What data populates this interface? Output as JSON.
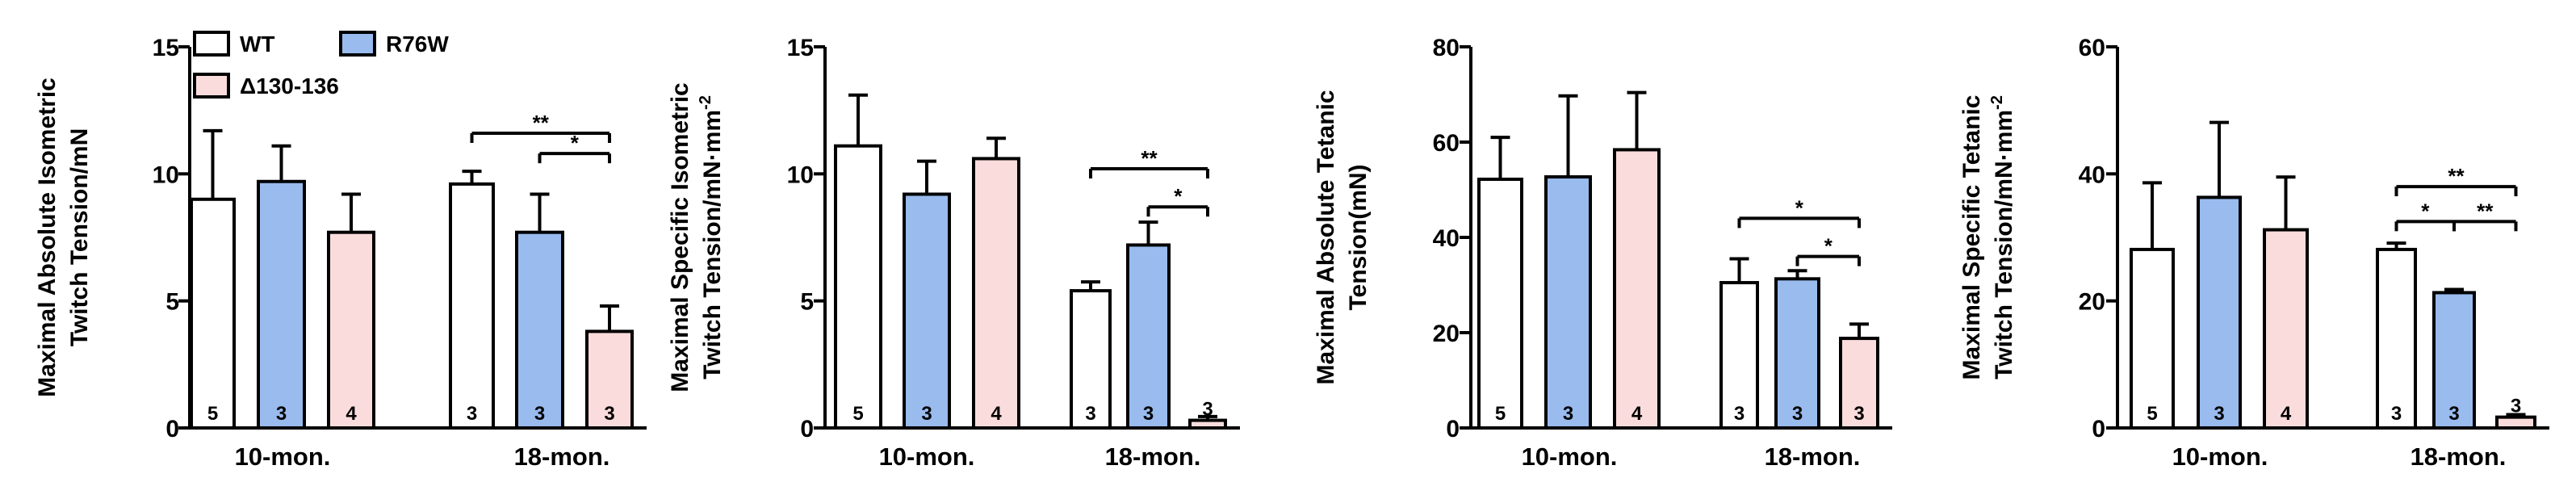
{
  "chart_data": [
    {
      "type": "bar",
      "ylabel": [
        "Maximal Absolute Isometric",
        "Twitch Tension/mN"
      ],
      "ylim": [
        0,
        15
      ],
      "yticks": [
        0,
        5,
        10,
        15
      ],
      "categories": [
        "10-mon.",
        "18-mon."
      ],
      "series": [
        {
          "name": "WT",
          "color": "#ffffff",
          "values": [
            9.0,
            9.6
          ],
          "errors": [
            2.7,
            0.5
          ],
          "n": [
            "5",
            "3"
          ]
        },
        {
          "name": "R76W",
          "color": "#99bbee",
          "values": [
            9.7,
            7.7
          ],
          "errors": [
            1.4,
            1.5
          ],
          "n": [
            "3",
            "3"
          ]
        },
        {
          "name": "Δ130-136",
          "color": "#fbdcdc",
          "values": [
            7.7,
            3.8
          ],
          "errors": [
            1.5,
            1.0
          ],
          "n": [
            "4",
            "3"
          ]
        }
      ],
      "significance": [
        {
          "from": 1,
          "to": 2,
          "y": 10.8,
          "label": "*"
        },
        {
          "from": 0,
          "to": 2,
          "y": 11.6,
          "label": "**"
        }
      ],
      "grid": false
    },
    {
      "type": "bar",
      "ylabel": [
        "Maximal Specific Isometric",
        "Twitch Tension/mN·mm",
        "-2"
      ],
      "ylim": [
        0,
        15
      ],
      "yticks": [
        0,
        5,
        10,
        15
      ],
      "categories": [
        "10-mon.",
        "18-mon."
      ],
      "series": [
        {
          "name": "WT",
          "color": "#ffffff",
          "values": [
            11.1,
            5.4
          ],
          "errors": [
            2.0,
            0.35
          ],
          "n": [
            "5",
            "3"
          ]
        },
        {
          "name": "R76W",
          "color": "#99bbee",
          "values": [
            9.2,
            7.2
          ],
          "errors": [
            1.3,
            0.9
          ],
          "n": [
            "3",
            "3"
          ]
        },
        {
          "name": "Δ130-136",
          "color": "#fbdcdc",
          "values": [
            10.6,
            0.3
          ],
          "errors": [
            0.8,
            0.15
          ],
          "n": [
            "4",
            "3"
          ]
        }
      ],
      "significance": [
        {
          "from": 1,
          "to": 2,
          "y": 8.7,
          "label": "*"
        },
        {
          "from": 0,
          "to": 2,
          "y": 10.2,
          "label": "**"
        }
      ],
      "grid": false
    },
    {
      "type": "bar",
      "ylabel": [
        "Maximal Absolute Tetanic",
        "Tension(mN)"
      ],
      "ylim": [
        0,
        80
      ],
      "yticks": [
        0,
        20,
        40,
        60,
        80
      ],
      "categories": [
        "10-mon.",
        "18-mon."
      ],
      "series": [
        {
          "name": "WT",
          "color": "#ffffff",
          "values": [
            52.2,
            30.5
          ],
          "errors": [
            8.8,
            5.0
          ],
          "n": [
            "5",
            "3"
          ]
        },
        {
          "name": "R76W",
          "color": "#99bbee",
          "values": [
            52.7,
            31.3
          ],
          "errors": [
            17.0,
            1.7
          ],
          "n": [
            "3",
            "3"
          ]
        },
        {
          "name": "Δ130-136",
          "color": "#fbdcdc",
          "values": [
            58.4,
            18.8
          ],
          "errors": [
            12.0,
            3.0
          ],
          "n": [
            "4",
            "3"
          ]
        }
      ],
      "significance": [
        {
          "from": 1,
          "to": 2,
          "y": 36.0,
          "label": "*"
        },
        {
          "from": 0,
          "to": 2,
          "y": 44.0,
          "label": "*"
        }
      ],
      "grid": false
    },
    {
      "type": "bar",
      "ylabel": [
        "Maximal Specific Tetanic",
        "Twitch Tension/mN·mm",
        "-2"
      ],
      "ylim": [
        0,
        60
      ],
      "yticks": [
        0,
        20,
        40,
        60
      ],
      "categories": [
        "10-mon.",
        "18-mon."
      ],
      "series": [
        {
          "name": "WT",
          "color": "#ffffff",
          "values": [
            28.1,
            28.1
          ],
          "errors": [
            10.5,
            1.0
          ],
          "n": [
            "5",
            "3"
          ]
        },
        {
          "name": "R76W",
          "color": "#99bbee",
          "values": [
            36.3,
            21.3
          ],
          "errors": [
            11.8,
            0.5
          ],
          "n": [
            "3",
            "3"
          ]
        },
        {
          "name": "Δ130-136",
          "color": "#fbdcdc",
          "values": [
            31.2,
            1.7
          ],
          "errors": [
            8.3,
            0.4
          ],
          "n": [
            "4",
            "3"
          ]
        }
      ],
      "significance": [
        {
          "from": 0,
          "to": 1,
          "y": 32.5,
          "label": "*"
        },
        {
          "from": 1,
          "to": 2,
          "y": 32.5,
          "label": "**"
        },
        {
          "from": 0,
          "to": 2,
          "y": 38.0,
          "label": "**"
        }
      ],
      "grid": false
    }
  ]
}
